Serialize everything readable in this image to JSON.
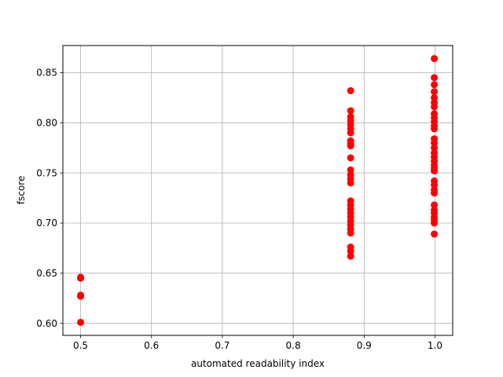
{
  "chart_data": {
    "type": "scatter",
    "xlabel": "automated readability index",
    "ylabel": "fscore",
    "xlim": [
      0.475,
      1.025
    ],
    "ylim": [
      0.588,
      0.877
    ],
    "xticks": [
      0.5,
      0.6,
      0.7,
      0.8,
      0.9,
      1.0
    ],
    "xtick_labels": [
      "0.5",
      "0.6",
      "0.7",
      "0.8",
      "0.9",
      "1.0"
    ],
    "yticks": [
      0.6,
      0.65,
      0.7,
      0.75,
      0.8,
      0.85
    ],
    "ytick_labels": [
      "0.60",
      "0.65",
      "0.70",
      "0.75",
      "0.80",
      "0.85"
    ],
    "grid": true,
    "marker_color": "#ff0000",
    "series": [
      {
        "points": [
          [
            0.5,
            0.601
          ],
          [
            0.5,
            0.627
          ],
          [
            0.5,
            0.628
          ],
          [
            0.5,
            0.645
          ],
          [
            0.5,
            0.646
          ],
          [
            0.881,
            0.667
          ],
          [
            0.881,
            0.672
          ],
          [
            0.881,
            0.676
          ],
          [
            0.881,
            0.69
          ],
          [
            0.881,
            0.694
          ],
          [
            0.881,
            0.698
          ],
          [
            0.881,
            0.702
          ],
          [
            0.881,
            0.706
          ],
          [
            0.881,
            0.71
          ],
          [
            0.881,
            0.714
          ],
          [
            0.881,
            0.718
          ],
          [
            0.881,
            0.722
          ],
          [
            0.881,
            0.74
          ],
          [
            0.881,
            0.744
          ],
          [
            0.881,
            0.748
          ],
          [
            0.881,
            0.753
          ],
          [
            0.881,
            0.765
          ],
          [
            0.881,
            0.777
          ],
          [
            0.881,
            0.779
          ],
          [
            0.881,
            0.782
          ],
          [
            0.881,
            0.79
          ],
          [
            0.881,
            0.794
          ],
          [
            0.881,
            0.798
          ],
          [
            0.881,
            0.802
          ],
          [
            0.881,
            0.806
          ],
          [
            0.881,
            0.812
          ],
          [
            0.881,
            0.832
          ],
          [
            0.999,
            0.689
          ],
          [
            0.999,
            0.7
          ],
          [
            0.999,
            0.703
          ],
          [
            0.999,
            0.706
          ],
          [
            0.999,
            0.71
          ],
          [
            0.999,
            0.713
          ],
          [
            0.999,
            0.718
          ],
          [
            0.999,
            0.73
          ],
          [
            0.999,
            0.733
          ],
          [
            0.999,
            0.738
          ],
          [
            0.999,
            0.742
          ],
          [
            0.999,
            0.752
          ],
          [
            0.999,
            0.755
          ],
          [
            0.999,
            0.758
          ],
          [
            0.999,
            0.762
          ],
          [
            0.999,
            0.766
          ],
          [
            0.999,
            0.77
          ],
          [
            0.999,
            0.775
          ],
          [
            0.999,
            0.78
          ],
          [
            0.999,
            0.784
          ],
          [
            0.999,
            0.794
          ],
          [
            0.999,
            0.797
          ],
          [
            0.999,
            0.801
          ],
          [
            0.999,
            0.805
          ],
          [
            0.999,
            0.809
          ],
          [
            0.999,
            0.816
          ],
          [
            0.999,
            0.82
          ],
          [
            0.999,
            0.825
          ],
          [
            0.999,
            0.831
          ],
          [
            0.999,
            0.838
          ],
          [
            0.999,
            0.845
          ],
          [
            0.999,
            0.864
          ]
        ]
      }
    ]
  }
}
